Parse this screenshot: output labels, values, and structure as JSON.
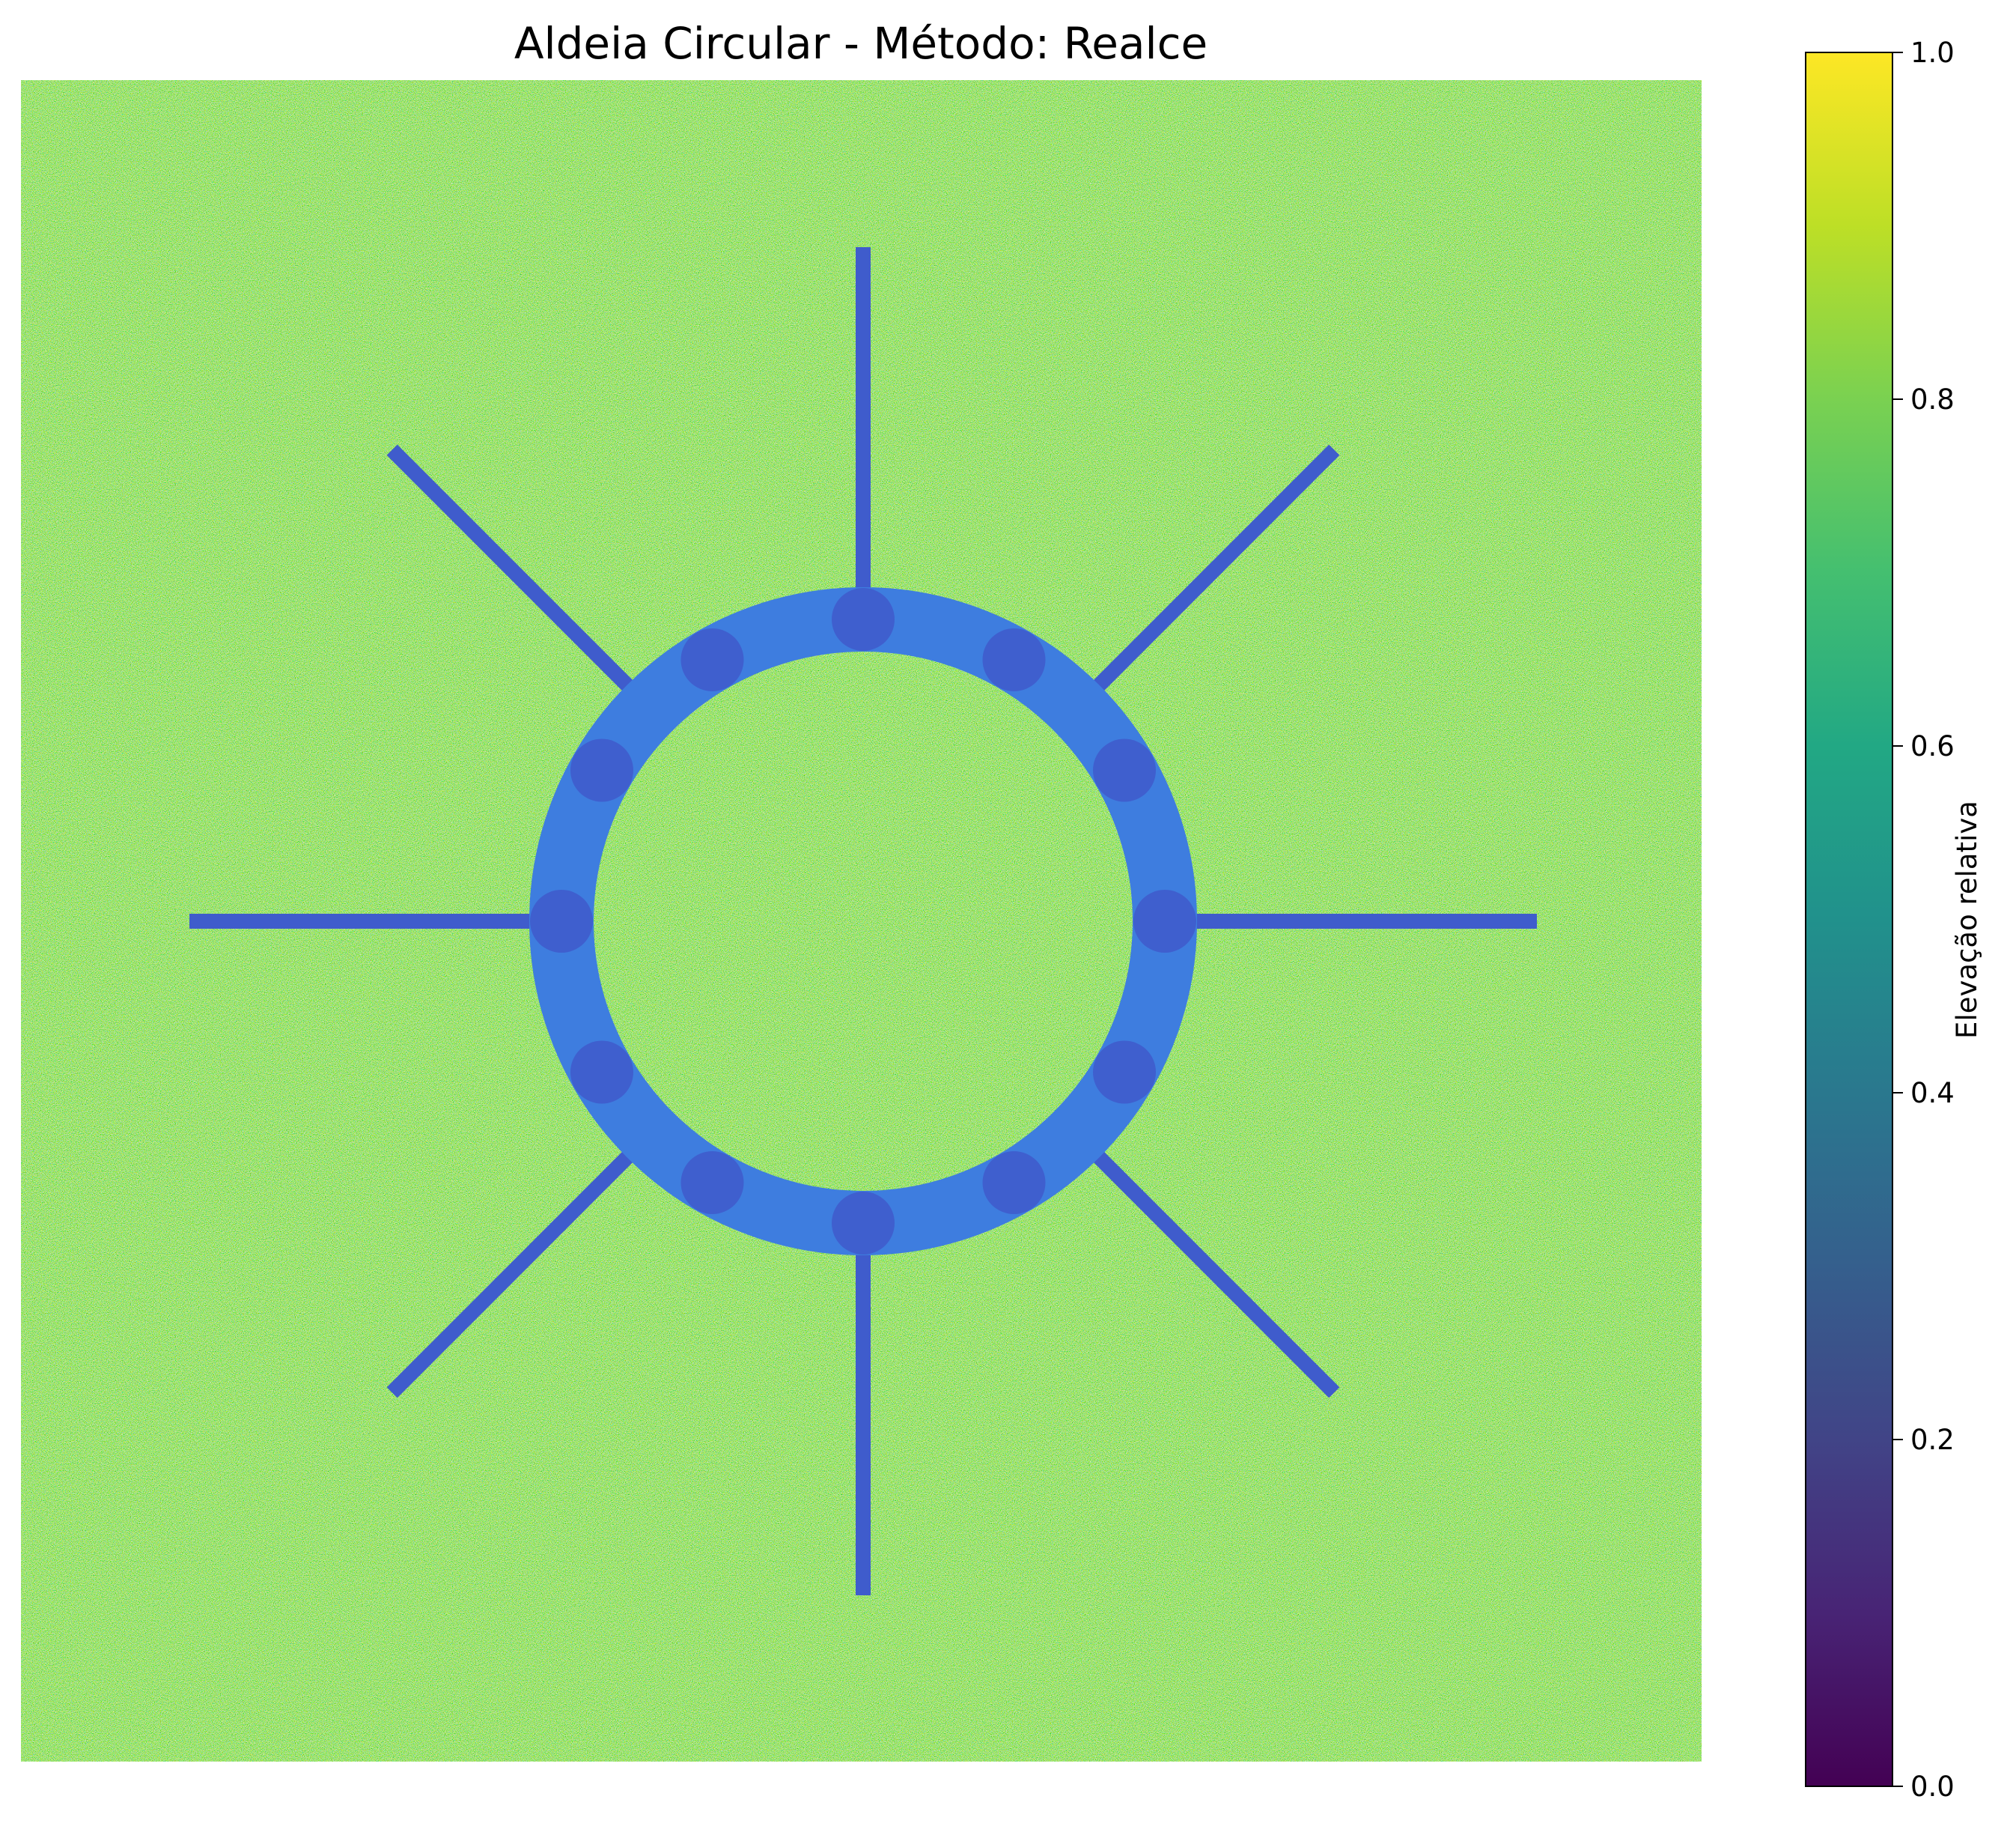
{
  "chart_data": {
    "type": "heatmap",
    "title": "Aldeia Circular - Método: Realce",
    "colormap": "viridis",
    "background": "random noise",
    "features": [
      {
        "shape": "ring",
        "label": ""
      },
      {
        "shape": "radial-lines",
        "count": 8
      },
      {
        "shape": "dots-on-ring",
        "count": 12
      }
    ],
    "colorbar": {
      "label": "Elevação relativa",
      "range": [
        0.0,
        1.0
      ],
      "ticks": [
        "0.0",
        "0.2",
        "0.4",
        "0.6",
        "0.8",
        "1.0"
      ],
      "tick_values": [
        0.0,
        0.2,
        0.4,
        0.6,
        0.8,
        1.0
      ]
    },
    "axes_visible": false
  }
}
